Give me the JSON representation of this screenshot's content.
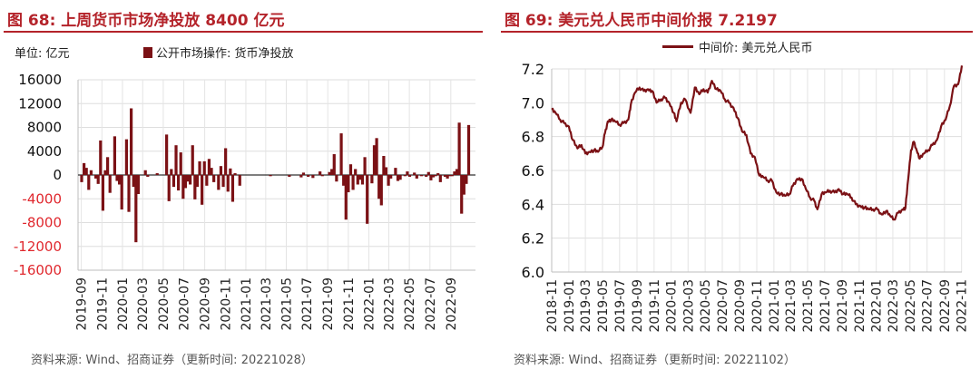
{
  "left": {
    "title": "图 68:  上周货币市场净投放 8400 亿元",
    "unit": "单位:  亿元",
    "legend": "公开市场操作: 货币净投放",
    "source": "资料来源:  Wind、招商证券（更新时间: 20221028）"
  },
  "right": {
    "title": "图 69:  美元兑人民币中间价报 7.2197",
    "legend": "中间价: 美元兑人民币",
    "source": "资料来源:  Wind、招商证券（更新时间: 20221102）"
  },
  "colors": {
    "title": "#b4232a",
    "series": "#7b1115",
    "negative_tick": "#e0282e"
  },
  "chart_data": [
    {
      "type": "bar",
      "ylabel": "亿元",
      "ylim": [
        -16000,
        16000
      ],
      "yticks": [
        "16000",
        "12000",
        "8000",
        "4000",
        "0",
        "-4000",
        "-8000",
        "-12000",
        "-16000"
      ],
      "xtick_labels": [
        "2019-09",
        "2019-11",
        "2020-01",
        "2020-03",
        "2020-05",
        "2020-07",
        "2020-09",
        "2020-11",
        "2021-01",
        "2021-03",
        "2021-05",
        "2021-07",
        "2021-09",
        "2021-11",
        "2022-01",
        "2022-03",
        "2022-05",
        "2022-07",
        "2022-09"
      ],
      "x_start": "2019-09-02",
      "x_end": "2022-10-28",
      "series": [
        {
          "name": "公开市场操作: 货币净投放",
          "points": [
            [
              "2019-09-02",
              -1200
            ],
            [
              "2019-09-09",
              2000
            ],
            [
              "2019-09-16",
              1200
            ],
            [
              "2019-09-23",
              -2500
            ],
            [
              "2019-09-30",
              800
            ],
            [
              "2019-10-14",
              -600
            ],
            [
              "2019-10-21",
              -1500
            ],
            [
              "2019-10-28",
              5800
            ],
            [
              "2019-11-04",
              -6000
            ],
            [
              "2019-11-11",
              800
            ],
            [
              "2019-11-18",
              3000
            ],
            [
              "2019-11-25",
              -3000
            ],
            [
              "2019-12-09",
              6500
            ],
            [
              "2019-12-16",
              -1000
            ],
            [
              "2019-12-23",
              -1600
            ],
            [
              "2019-12-30",
              -5800
            ],
            [
              "2020-01-13",
              6000
            ],
            [
              "2020-01-20",
              -6200
            ],
            [
              "2020-01-27",
              11200
            ],
            [
              "2020-02-03",
              -2000
            ],
            [
              "2020-02-10",
              -11300
            ],
            [
              "2020-02-17",
              -3200
            ],
            [
              "2020-03-09",
              800
            ],
            [
              "2020-03-16",
              -300
            ],
            [
              "2020-04-13",
              300
            ],
            [
              "2020-05-11",
              6800
            ],
            [
              "2020-05-18",
              -4400
            ],
            [
              "2020-05-25",
              1000
            ],
            [
              "2020-06-01",
              -2000
            ],
            [
              "2020-06-08",
              5000
            ],
            [
              "2020-06-15",
              -2600
            ],
            [
              "2020-06-22",
              3800
            ],
            [
              "2020-06-29",
              -4000
            ],
            [
              "2020-07-06",
              -2200
            ],
            [
              "2020-07-13",
              -1100
            ],
            [
              "2020-07-20",
              -1600
            ],
            [
              "2020-07-27",
              5000
            ],
            [
              "2020-08-03",
              -4100
            ],
            [
              "2020-08-10",
              -2000
            ],
            [
              "2020-08-17",
              2300
            ],
            [
              "2020-08-24",
              -5000
            ],
            [
              "2020-08-31",
              2300
            ],
            [
              "2020-09-07",
              -1800
            ],
            [
              "2020-09-14",
              2700
            ],
            [
              "2020-09-21",
              1200
            ],
            [
              "2020-09-28",
              -1200
            ],
            [
              "2020-10-12",
              -2500
            ],
            [
              "2020-10-19",
              1500
            ],
            [
              "2020-10-26",
              -2000
            ],
            [
              "2020-11-02",
              4500
            ],
            [
              "2020-11-09",
              -2800
            ],
            [
              "2020-11-16",
              1100
            ],
            [
              "2020-11-23",
              -4500
            ],
            [
              "2020-11-30",
              300
            ],
            [
              "2020-12-14",
              -1800
            ],
            [
              "2021-03-15",
              -200
            ],
            [
              "2021-05-10",
              -300
            ],
            [
              "2021-06-14",
              -400
            ],
            [
              "2021-06-21",
              400
            ],
            [
              "2021-07-05",
              -300
            ],
            [
              "2021-07-19",
              -500
            ],
            [
              "2021-08-09",
              600
            ],
            [
              "2021-08-16",
              -200
            ],
            [
              "2021-09-06",
              500
            ],
            [
              "2021-09-13",
              1000
            ],
            [
              "2021-09-20",
              3500
            ],
            [
              "2021-09-27",
              -1100
            ],
            [
              "2021-10-11",
              7000
            ],
            [
              "2021-10-18",
              -1800
            ],
            [
              "2021-10-25",
              -7500
            ],
            [
              "2021-11-01",
              -2900
            ],
            [
              "2021-11-08",
              1800
            ],
            [
              "2021-11-15",
              -2500
            ],
            [
              "2021-11-22",
              1000
            ],
            [
              "2021-11-29",
              -1600
            ],
            [
              "2021-12-06",
              -800
            ],
            [
              "2021-12-13",
              -1600
            ],
            [
              "2021-12-20",
              3000
            ],
            [
              "2021-12-27",
              -8200
            ],
            [
              "2022-01-10",
              -1400
            ],
            [
              "2022-01-17",
              5000
            ],
            [
              "2022-01-24",
              6200
            ],
            [
              "2022-01-31",
              -4000
            ],
            [
              "2022-02-07",
              -5100
            ],
            [
              "2022-02-14",
              3200
            ],
            [
              "2022-02-21",
              1300
            ],
            [
              "2022-02-28",
              -1800
            ],
            [
              "2022-03-07",
              -600
            ],
            [
              "2022-03-21",
              1200
            ],
            [
              "2022-03-28",
              -1000
            ],
            [
              "2022-04-04",
              -800
            ],
            [
              "2022-04-18",
              -200
            ],
            [
              "2022-04-25",
              600
            ],
            [
              "2022-05-02",
              -300
            ],
            [
              "2022-05-16",
              400
            ],
            [
              "2022-05-23",
              -600
            ],
            [
              "2022-06-06",
              -200
            ],
            [
              "2022-06-20",
              -300
            ],
            [
              "2022-06-27",
              500
            ],
            [
              "2022-07-04",
              -900
            ],
            [
              "2022-07-11",
              -400
            ],
            [
              "2022-07-18",
              -200
            ],
            [
              "2022-07-25",
              300
            ],
            [
              "2022-08-01",
              -1200
            ],
            [
              "2022-08-15",
              -300
            ],
            [
              "2022-08-22",
              -600
            ],
            [
              "2022-08-29",
              -200
            ],
            [
              "2022-09-05",
              -200
            ],
            [
              "2022-09-12",
              600
            ],
            [
              "2022-09-19",
              1000
            ],
            [
              "2022-09-26",
              8800
            ],
            [
              "2022-10-03",
              -6500
            ],
            [
              "2022-10-10",
              -3300
            ],
            [
              "2022-10-17",
              -1500
            ],
            [
              "2022-10-24",
              8400
            ]
          ]
        }
      ]
    },
    {
      "type": "line",
      "ylim": [
        6.0,
        7.2
      ],
      "yticks": [
        "7.2",
        "7.0",
        "6.8",
        "6.6",
        "6.4",
        "6.2",
        "6.0"
      ],
      "xtick_labels": [
        "2018-11",
        "2019-01",
        "2019-03",
        "2019-05",
        "2019-07",
        "2019-09",
        "2019-11",
        "2020-01",
        "2020-03",
        "2020-05",
        "2020-07",
        "2020-09",
        "2020-11",
        "2021-01",
        "2021-03",
        "2021-05",
        "2021-07",
        "2021-09",
        "2021-11",
        "2022-01",
        "2022-03",
        "2022-05",
        "2022-07",
        "2022-09",
        "2022-11"
      ],
      "x_start": "2018-11-01",
      "x_end": "2022-11-02",
      "series": [
        {
          "name": "中间价: 美元兑人民币",
          "points": [
            [
              "2018-11-01",
              6.96
            ],
            [
              "2018-11-15",
              6.94
            ],
            [
              "2018-12-01",
              6.9
            ],
            [
              "2018-12-15",
              6.88
            ],
            [
              "2019-01-01",
              6.86
            ],
            [
              "2019-01-15",
              6.78
            ],
            [
              "2019-02-01",
              6.73
            ],
            [
              "2019-02-15",
              6.75
            ],
            [
              "2019-03-01",
              6.7
            ],
            [
              "2019-03-15",
              6.71
            ],
            [
              "2019-04-01",
              6.72
            ],
            [
              "2019-04-15",
              6.71
            ],
            [
              "2019-05-01",
              6.74
            ],
            [
              "2019-05-10",
              6.82
            ],
            [
              "2019-05-20",
              6.89
            ],
            [
              "2019-06-01",
              6.9
            ],
            [
              "2019-06-15",
              6.89
            ],
            [
              "2019-07-01",
              6.87
            ],
            [
              "2019-07-15",
              6.88
            ],
            [
              "2019-08-01",
              6.9
            ],
            [
              "2019-08-10",
              6.99
            ],
            [
              "2019-08-25",
              7.06
            ],
            [
              "2019-09-10",
              7.09
            ],
            [
              "2019-09-25",
              7.07
            ],
            [
              "2019-10-10",
              7.08
            ],
            [
              "2019-10-25",
              7.07
            ],
            [
              "2019-11-10",
              7.0
            ],
            [
              "2019-11-25",
              7.02
            ],
            [
              "2019-12-10",
              7.03
            ],
            [
              "2019-12-25",
              7.0
            ],
            [
              "2020-01-10",
              6.94
            ],
            [
              "2020-01-20",
              6.89
            ],
            [
              "2020-02-05",
              7.0
            ],
            [
              "2020-02-20",
              7.02
            ],
            [
              "2020-03-10",
              6.94
            ],
            [
              "2020-03-25",
              7.09
            ],
            [
              "2020-04-10",
              7.05
            ],
            [
              "2020-04-25",
              7.08
            ],
            [
              "2020-05-10",
              7.06
            ],
            [
              "2020-05-25",
              7.13
            ],
            [
              "2020-06-10",
              7.08
            ],
            [
              "2020-06-25",
              7.07
            ],
            [
              "2020-07-10",
              7.02
            ],
            [
              "2020-07-25",
              7.0
            ],
            [
              "2020-08-10",
              6.97
            ],
            [
              "2020-08-25",
              6.91
            ],
            [
              "2020-09-10",
              6.83
            ],
            [
              "2020-09-25",
              6.81
            ],
            [
              "2020-10-10",
              6.7
            ],
            [
              "2020-10-25",
              6.68
            ],
            [
              "2020-11-10",
              6.57
            ],
            [
              "2020-11-25",
              6.56
            ],
            [
              "2020-12-10",
              6.54
            ],
            [
              "2020-12-25",
              6.54
            ],
            [
              "2021-01-10",
              6.47
            ],
            [
              "2021-01-25",
              6.46
            ],
            [
              "2021-02-10",
              6.45
            ],
            [
              "2021-02-25",
              6.46
            ],
            [
              "2021-03-10",
              6.51
            ],
            [
              "2021-03-25",
              6.55
            ],
            [
              "2021-04-10",
              6.55
            ],
            [
              "2021-04-25",
              6.49
            ],
            [
              "2021-05-10",
              6.44
            ],
            [
              "2021-05-25",
              6.42
            ],
            [
              "2021-06-05",
              6.37
            ],
            [
              "2021-06-20",
              6.46
            ],
            [
              "2021-07-05",
              6.47
            ],
            [
              "2021-07-20",
              6.48
            ],
            [
              "2021-08-05",
              6.47
            ],
            [
              "2021-08-20",
              6.49
            ],
            [
              "2021-09-05",
              6.46
            ],
            [
              "2021-09-20",
              6.46
            ],
            [
              "2021-10-05",
              6.44
            ],
            [
              "2021-10-20",
              6.4
            ],
            [
              "2021-11-05",
              6.39
            ],
            [
              "2021-11-20",
              6.38
            ],
            [
              "2021-12-05",
              6.37
            ],
            [
              "2021-12-20",
              6.37
            ],
            [
              "2022-01-05",
              6.37
            ],
            [
              "2022-01-20",
              6.34
            ],
            [
              "2022-02-05",
              6.36
            ],
            [
              "2022-02-20",
              6.33
            ],
            [
              "2022-03-05",
              6.31
            ],
            [
              "2022-03-20",
              6.35
            ],
            [
              "2022-04-05",
              6.37
            ],
            [
              "2022-04-15",
              6.38
            ],
            [
              "2022-04-25",
              6.55
            ],
            [
              "2022-05-05",
              6.72
            ],
            [
              "2022-05-15",
              6.77
            ],
            [
              "2022-05-25",
              6.72
            ],
            [
              "2022-06-05",
              6.67
            ],
            [
              "2022-06-20",
              6.7
            ],
            [
              "2022-07-05",
              6.72
            ],
            [
              "2022-07-20",
              6.75
            ],
            [
              "2022-08-05",
              6.78
            ],
            [
              "2022-08-20",
              6.86
            ],
            [
              "2022-09-05",
              6.9
            ],
            [
              "2022-09-20",
              6.98
            ],
            [
              "2022-10-05",
              7.1
            ],
            [
              "2022-10-20",
              7.11
            ],
            [
              "2022-11-02",
              7.2197
            ]
          ]
        }
      ]
    }
  ]
}
